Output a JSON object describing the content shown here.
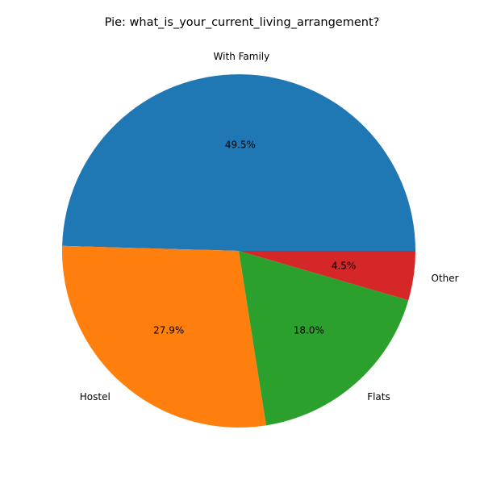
{
  "chart_data": {
    "type": "pie",
    "title": "Pie: what_is_your_current_living_arrangement?",
    "categories": [
      "With Family",
      "Hostel",
      "Flats",
      "Other"
    ],
    "values": [
      49.5,
      27.9,
      18.0,
      4.5
    ],
    "percent_labels": [
      "49.5%",
      "27.9%",
      "18.0%",
      "4.5%"
    ],
    "colors": [
      "#1f77b4",
      "#ff7f0e",
      "#2ca02c",
      "#d62728"
    ],
    "start_angle_deg": 0,
    "direction": "counterclockwise",
    "legend": "none"
  }
}
